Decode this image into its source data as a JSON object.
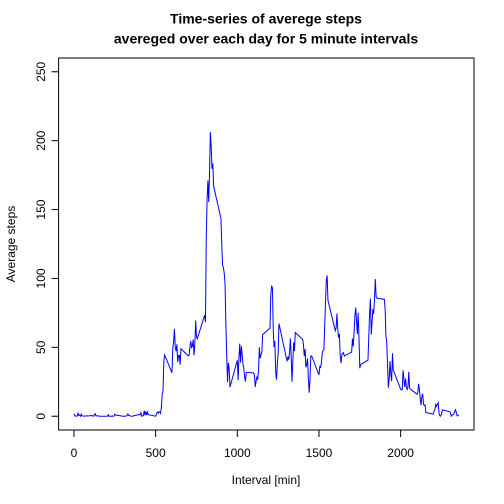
{
  "chart_data": {
    "type": "line",
    "title": "Time-series of averege steps",
    "subtitle": "avereged over each day for 5 minute intervals",
    "x_label": "Interval [min]",
    "y_label": "Average steps",
    "x": [
      0,
      5,
      10,
      15,
      20,
      25,
      30,
      35,
      40,
      45,
      50,
      55,
      100,
      105,
      110,
      115,
      120,
      125,
      130,
      135,
      140,
      145,
      150,
      155,
      200,
      205,
      210,
      215,
      220,
      225,
      230,
      235,
      240,
      245,
      250,
      255,
      300,
      305,
      310,
      315,
      320,
      325,
      330,
      335,
      340,
      345,
      350,
      355,
      400,
      405,
      410,
      415,
      420,
      425,
      430,
      435,
      440,
      445,
      450,
      455,
      500,
      505,
      510,
      515,
      520,
      525,
      530,
      535,
      540,
      545,
      550,
      555,
      600,
      605,
      610,
      615,
      620,
      625,
      630,
      635,
      640,
      645,
      650,
      655,
      700,
      705,
      710,
      715,
      720,
      725,
      730,
      735,
      740,
      745,
      750,
      755,
      800,
      805,
      810,
      815,
      820,
      825,
      830,
      835,
      840,
      845,
      850,
      855,
      900,
      905,
      910,
      915,
      920,
      925,
      930,
      935,
      940,
      945,
      950,
      955,
      1000,
      1005,
      1010,
      1015,
      1020,
      1025,
      1030,
      1035,
      1040,
      1045,
      1050,
      1055,
      1100,
      1105,
      1110,
      1115,
      1120,
      1125,
      1130,
      1135,
      1140,
      1145,
      1150,
      1155,
      1200,
      1205,
      1210,
      1215,
      1220,
      1225,
      1230,
      1235,
      1240,
      1245,
      1250,
      1255,
      1300,
      1305,
      1310,
      1315,
      1320,
      1325,
      1330,
      1335,
      1340,
      1345,
      1350,
      1355,
      1400,
      1405,
      1410,
      1415,
      1420,
      1425,
      1430,
      1435,
      1440,
      1445,
      1450,
      1455,
      1500,
      1505,
      1510,
      1515,
      1520,
      1525,
      1530,
      1535,
      1540,
      1545,
      1550,
      1555,
      1600,
      1605,
      1610,
      1615,
      1620,
      1625,
      1630,
      1635,
      1640,
      1645,
      1650,
      1655,
      1700,
      1705,
      1710,
      1715,
      1720,
      1725,
      1730,
      1735,
      1740,
      1745,
      1750,
      1755,
      1800,
      1805,
      1810,
      1815,
      1820,
      1825,
      1830,
      1835,
      1840,
      1845,
      1850,
      1855,
      1900,
      1905,
      1910,
      1915,
      1920,
      1925,
      1930,
      1935,
      1940,
      1945,
      1950,
      1955,
      2000,
      2005,
      2010,
      2015,
      2020,
      2025,
      2030,
      2035,
      2040,
      2045,
      2050,
      2055,
      2100,
      2105,
      2110,
      2115,
      2120,
      2125,
      2130,
      2135,
      2140,
      2145,
      2150,
      2155,
      2200,
      2205,
      2210,
      2215,
      2220,
      2225,
      2230,
      2235,
      2240,
      2245,
      2250,
      2255,
      2300,
      2305,
      2310,
      2315,
      2320,
      2325,
      2330,
      2335,
      2340,
      2345,
      2350,
      2355
    ],
    "series": [
      {
        "name": "Average steps",
        "color": "#0000ff",
        "values": [
          1.7,
          0.3,
          0.1,
          0.2,
          0.1,
          2.1,
          0.5,
          0.9,
          0,
          1.5,
          0.3,
          0.1,
          0.3,
          0.7,
          0.2,
          0.3,
          0,
          1.1,
          1.8,
          0.2,
          0.2,
          0.4,
          0.3,
          0,
          0,
          0,
          1.1,
          0,
          0,
          0.1,
          0,
          0.2,
          0,
          0,
          1.5,
          0.9,
          0,
          0,
          0,
          0,
          0.2,
          0.6,
          1.6,
          0.6,
          0.5,
          0.1,
          0,
          0,
          1.2,
          0.9,
          2.6,
          0,
          0.3,
          0.4,
          4.1,
          0.7,
          3.5,
          0.8,
          3.1,
          1.1,
          0,
          1.6,
          3.0,
          2.2,
          3.3,
          3.0,
          2.1,
          6.1,
          16,
          18.3,
          39.5,
          44.5,
          31.5,
          49.3,
          53.8,
          63.5,
          50,
          47.1,
          52.2,
          39.3,
          44.1,
          44.2,
          37.4,
          49.0,
          43.8,
          44.4,
          50.5,
          54.5,
          49.9,
          50.9,
          55.7,
          44.3,
          52.3,
          69.5,
          57.8,
          56.2,
          73.4,
          68.2,
          129.4,
          157.5,
          171.2,
          155.4,
          177.3,
          206.2,
          195.9,
          179.6,
          183.4,
          167.0,
          143.5,
          124.0,
          109.1,
          108.1,
          103.7,
          96.0,
          66.2,
          45.2,
          24.8,
          38.8,
          35.0,
          21.1,
          40.6,
          26.1,
          42.4,
          52.7,
          38.9,
          50.8,
          44.3,
          37.4,
          34.7,
          28.3,
          25.1,
          31.9,
          31.4,
          29.7,
          21.3,
          25.5,
          28.4,
          26.5,
          33.4,
          50.0,
          42.0,
          44.6,
          46.0,
          59.2,
          63.9,
          87.7,
          94.8,
          92.8,
          63.4,
          50.2,
          54.5,
          32.4,
          26.5,
          37.7,
          45.1,
          67.3,
          42.3,
          39.9,
          43.3,
          41.0,
          46.2,
          56.4,
          42.8,
          25.1,
          40.0,
          53.5,
          47.3,
          60.8,
          55.8,
          52.0,
          43.6,
          48.7,
          35.5,
          37.5,
          41.8,
          27.5,
          17.1,
          26.1,
          43.6,
          43.8,
          30.0,
          36.1,
          35.5,
          38.8,
          46.0,
          47.8,
          48.1,
          65.3,
          82.9,
          98.7,
          102.1,
          84.0,
          62.1,
          64.1,
          74.5,
          63.2,
          56.9,
          59.8,
          43.9,
          38.6,
          44.7,
          45.5,
          46.2,
          43.7,
          46.6,
          56.3,
          50.7,
          61.2,
          72.7,
          78.9,
          68.9,
          59.7,
          75.1,
          56.5,
          34.8,
          37.5,
          40.7,
          58.0,
          74.7,
          85.3,
          59.3,
          67.8,
          77.7,
          74.2,
          85.3,
          99.5,
          86.6,
          85.6,
          84.9,
          77.8,
          58.0,
          53.4,
          36.3,
          20.7,
          27.4,
          40.0,
          30.2,
          25.5,
          45.7,
          33.5,
          19.6,
          19.0,
          19.3,
          33.3,
          26.8,
          21.2,
          27.3,
          21.3,
          19.5,
          21.3,
          32.3,
          20.2,
          15.9,
          17.2,
          23.5,
          19.2,
          12.5,
          8.0,
          14.7,
          16.3,
          8.7,
          7.8,
          8.1,
          2.6,
          1.5,
          3.7,
          4.8,
          8.5,
          7.1,
          8.7,
          9.8,
          2.2,
          0.3,
          0.1,
          1.6,
          4.6,
          3.3,
          2.8,
          0,
          0.8,
          1.0,
          1.6,
          2.6,
          4.7,
          3.3,
          0.6,
          0.2,
          1.1
        ]
      }
    ],
    "xlim": [
      -94.2,
      2449.2
    ],
    "xticks": [
      0,
      500,
      1000,
      1500,
      2000
    ],
    "ylim": [
      -10,
      260
    ],
    "yticks": [
      0,
      50,
      100,
      150,
      200,
      250
    ]
  }
}
